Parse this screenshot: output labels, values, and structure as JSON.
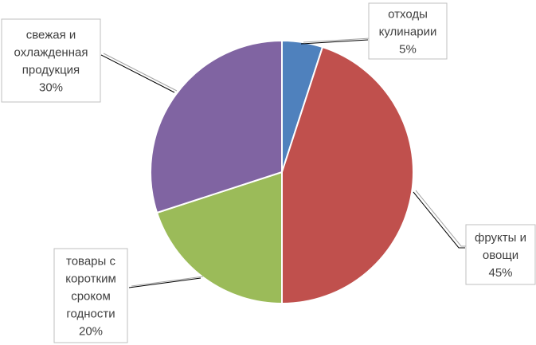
{
  "chart_data": {
    "type": "pie",
    "title": "",
    "start_angle_deg": 0,
    "direction": "clockwise",
    "slices": [
      {
        "label_lines": [
          "отходы",
          "кулинарии"
        ],
        "percent_label": "5%",
        "value": 5,
        "color": "#4f81bd"
      },
      {
        "label_lines": [
          "фрукты и",
          "овощи"
        ],
        "percent_label": "45%",
        "value": 45,
        "color": "#c0504d"
      },
      {
        "label_lines": [
          "товары с",
          "коротким",
          "сроком",
          "годности"
        ],
        "percent_label": "20%",
        "value": 20,
        "color": "#9bbb59"
      },
      {
        "label_lines": [
          "свежая и",
          "охлажденная",
          "продукция"
        ],
        "percent_label": "30%",
        "value": 30,
        "color": "#8064a2"
      }
    ],
    "legend": "none",
    "data_labels": "callouts outside with leader lines"
  }
}
